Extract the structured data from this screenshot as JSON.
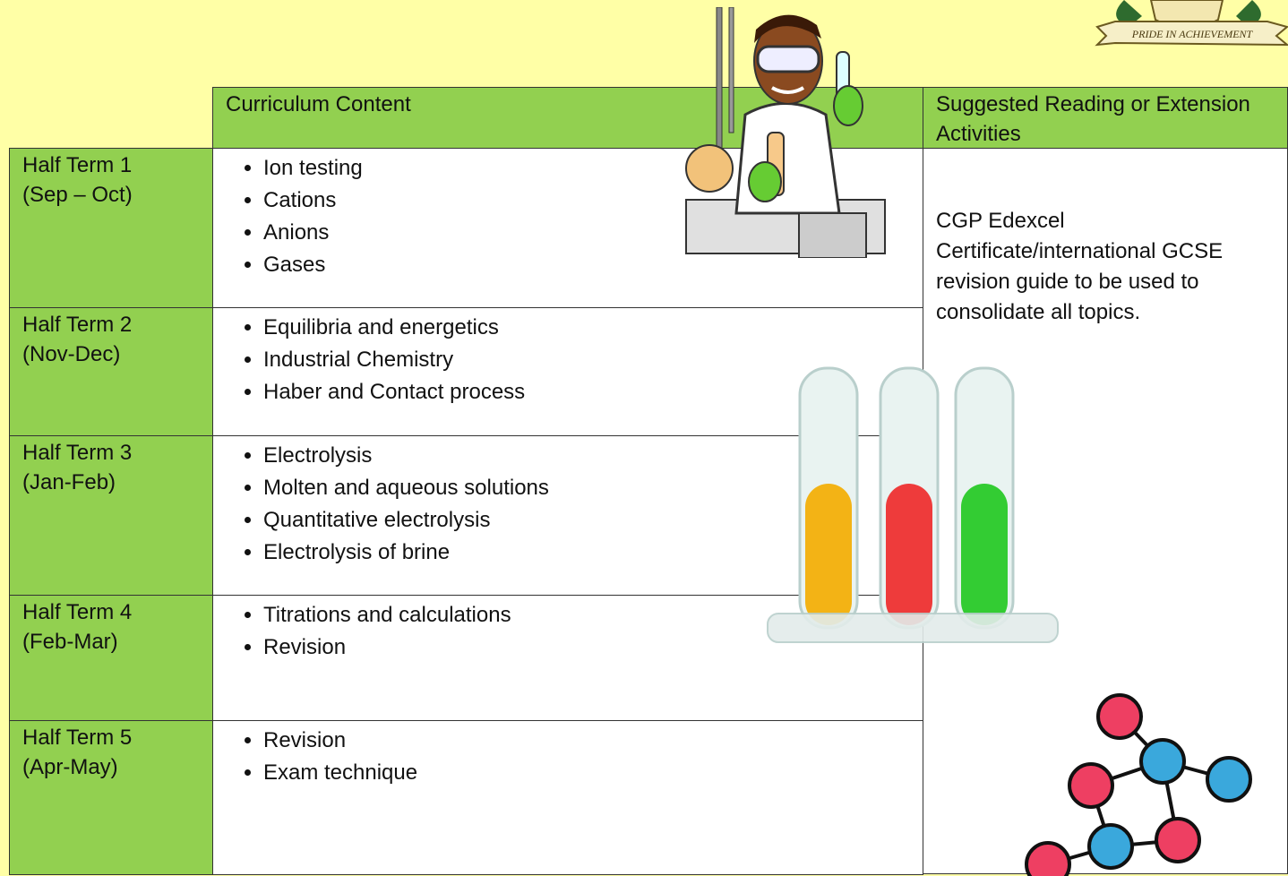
{
  "logo": {
    "motto": "PRIDE IN ACHIEVEMENT"
  },
  "table": {
    "headers": [
      "Curriculum Content",
      "Suggested Reading or Extension Activities"
    ],
    "rows": [
      {
        "term": "Half Term 1",
        "months": "(Sep – Oct)",
        "items": [
          "Ion testing",
          "Cations",
          "Anions",
          "Gases"
        ]
      },
      {
        "term": "Half Term 2",
        "months": "(Nov-Dec)",
        "items": [
          "Equilibria and energetics",
          "Industrial Chemistry",
          "Haber and Contact process"
        ]
      },
      {
        "term": "Half Term 3",
        "months": "(Jan-Feb)",
        "items": [
          "Electrolysis",
          "Molten and aqueous solutions",
          "Quantitative electrolysis",
          "Electrolysis of brine"
        ]
      },
      {
        "term": "Half Term 4",
        "months": "(Feb-Mar)",
        "items": [
          "Titrations and calculations",
          "Revision"
        ]
      },
      {
        "term": "Half Term 5",
        "months": "(Apr-May)",
        "items": [
          "Revision",
          "Exam technique"
        ]
      }
    ],
    "reading": "CGP Edexcel Certificate/international GCSE revision guide to be used to consolidate all topics."
  }
}
